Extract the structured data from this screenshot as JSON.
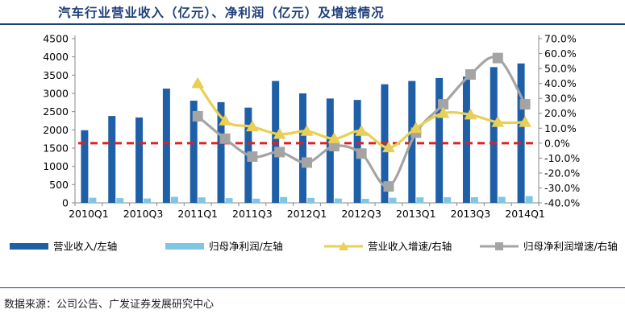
{
  "title": "汽车行业营业收入（亿元）、净利润（亿元）及增速情况",
  "source": "数据来源：公司公告、广发证券发展研究中心",
  "colors": {
    "revenue": "#1f5fa8",
    "profit": "#7fc6e3",
    "revenue_growth": "#e8cf56",
    "profit_growth": "#a4a4a4",
    "zero_line": "#e02020"
  },
  "chart_data": {
    "type": "bar",
    "categories": [
      "2010Q1",
      "2010Q2",
      "2010Q3",
      "2010Q4",
      "2011Q1",
      "2011Q2",
      "2011Q3",
      "2011Q4",
      "2012Q1",
      "2012Q2",
      "2012Q3",
      "2012Q4",
      "2013Q1",
      "2013Q2",
      "2013Q3",
      "2013Q4",
      "2014Q1"
    ],
    "x_tick_labels": [
      "2010Q1",
      "2010Q3",
      "2011Q1",
      "2011Q3",
      "2012Q1",
      "2012Q3",
      "2013Q1",
      "2013Q3",
      "2014Q1"
    ],
    "left_axis": {
      "ylim": [
        0,
        4500
      ],
      "ticks": [
        "0",
        "500",
        "1000",
        "1500",
        "2000",
        "2500",
        "3000",
        "3500",
        "4000",
        "4500"
      ]
    },
    "right_axis": {
      "ylim": [
        -40,
        70
      ],
      "ticks": [
        "-40.0%",
        "-30.0%",
        "-20.0%",
        "-10.0%",
        "0.0%",
        "10.0%",
        "20.0%",
        "30.0%",
        "40.0%",
        "50.0%",
        "60.0%",
        "70.0%"
      ]
    },
    "series": [
      {
        "name": "营业收入/左轴",
        "type": "bar",
        "axis": "left",
        "values": [
          1990,
          2380,
          2340,
          3130,
          2800,
          2760,
          2610,
          3340,
          3000,
          2860,
          2820,
          3250,
          3340,
          3420,
          3460,
          3720,
          3820
        ]
      },
      {
        "name": "归母净利润/左轴",
        "type": "bar",
        "axis": "left",
        "values": [
          140,
          130,
          120,
          165,
          150,
          130,
          115,
          160,
          135,
          120,
          110,
          140,
          150,
          155,
          155,
          165,
          185
        ]
      },
      {
        "name": "营业收入增速/右轴",
        "type": "line",
        "axis": "right",
        "marker": "triangle",
        "values": [
          null,
          null,
          null,
          null,
          40,
          15,
          11,
          6,
          8,
          3,
          8,
          -3,
          10,
          20,
          19,
          14,
          14
        ]
      },
      {
        "name": "归母净利润增速/右轴",
        "type": "line",
        "axis": "right",
        "marker": "square",
        "values": [
          null,
          null,
          null,
          null,
          18,
          3,
          -9,
          -6,
          -13,
          -2,
          -7,
          -29,
          7,
          26,
          46,
          57,
          26
        ]
      }
    ],
    "reference_line": {
      "axis": "right",
      "value": 0,
      "style": "dashed"
    }
  }
}
